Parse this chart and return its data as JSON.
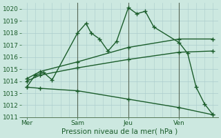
{
  "background_color": "#cce8e0",
  "grid_color": "#aacccc",
  "line_color": "#1a5c2a",
  "vline_color": "#556655",
  "xlabel": "Pression niveau de la mer( hPa )",
  "ylim": [
    1011,
    1020.5
  ],
  "yticks": [
    1011,
    1012,
    1013,
    1014,
    1015,
    1016,
    1017,
    1018,
    1019,
    1020
  ],
  "xtick_labels": [
    "Mer",
    "Sam",
    "Jeu",
    "Ven"
  ],
  "xtick_positions": [
    0,
    3,
    6,
    9
  ],
  "xlim": [
    -0.3,
    11.3
  ],
  "series": [
    {
      "x": [
        0,
        0.5,
        1.0,
        1.5,
        3.0,
        3.5,
        3.8,
        4.3,
        4.8,
        5.3,
        6.0,
        6.5,
        7.0,
        7.5,
        9.0,
        9.5,
        10.0,
        10.5,
        11.0
      ],
      "y": [
        1013.5,
        1014.5,
        1014.7,
        1014.1,
        1018.0,
        1018.8,
        1018.0,
        1017.5,
        1016.5,
        1017.3,
        1020.1,
        1019.6,
        1019.8,
        1018.5,
        1017.2,
        1016.3,
        1013.5,
        1012.1,
        1011.2
      ]
    },
    {
      "x": [
        0,
        0.8,
        3.0,
        6.0,
        9.0,
        11.0
      ],
      "y": [
        1014.2,
        1014.8,
        1015.6,
        1016.8,
        1017.5,
        1017.5
      ]
    },
    {
      "x": [
        0,
        0.8,
        3.0,
        6.0,
        9.0,
        11.0
      ],
      "y": [
        1014.0,
        1014.5,
        1015.1,
        1015.8,
        1016.4,
        1016.5
      ]
    },
    {
      "x": [
        0,
        0.8,
        3.0,
        6.0,
        9.0,
        11.0
      ],
      "y": [
        1013.5,
        1013.4,
        1013.2,
        1012.5,
        1011.8,
        1011.2
      ]
    }
  ],
  "vline_positions": [
    3,
    6,
    9
  ],
  "marker": "+",
  "markersize": 4,
  "linewidth": 1.0,
  "tick_fontsize": 6.5,
  "xlabel_fontsize": 7.5
}
